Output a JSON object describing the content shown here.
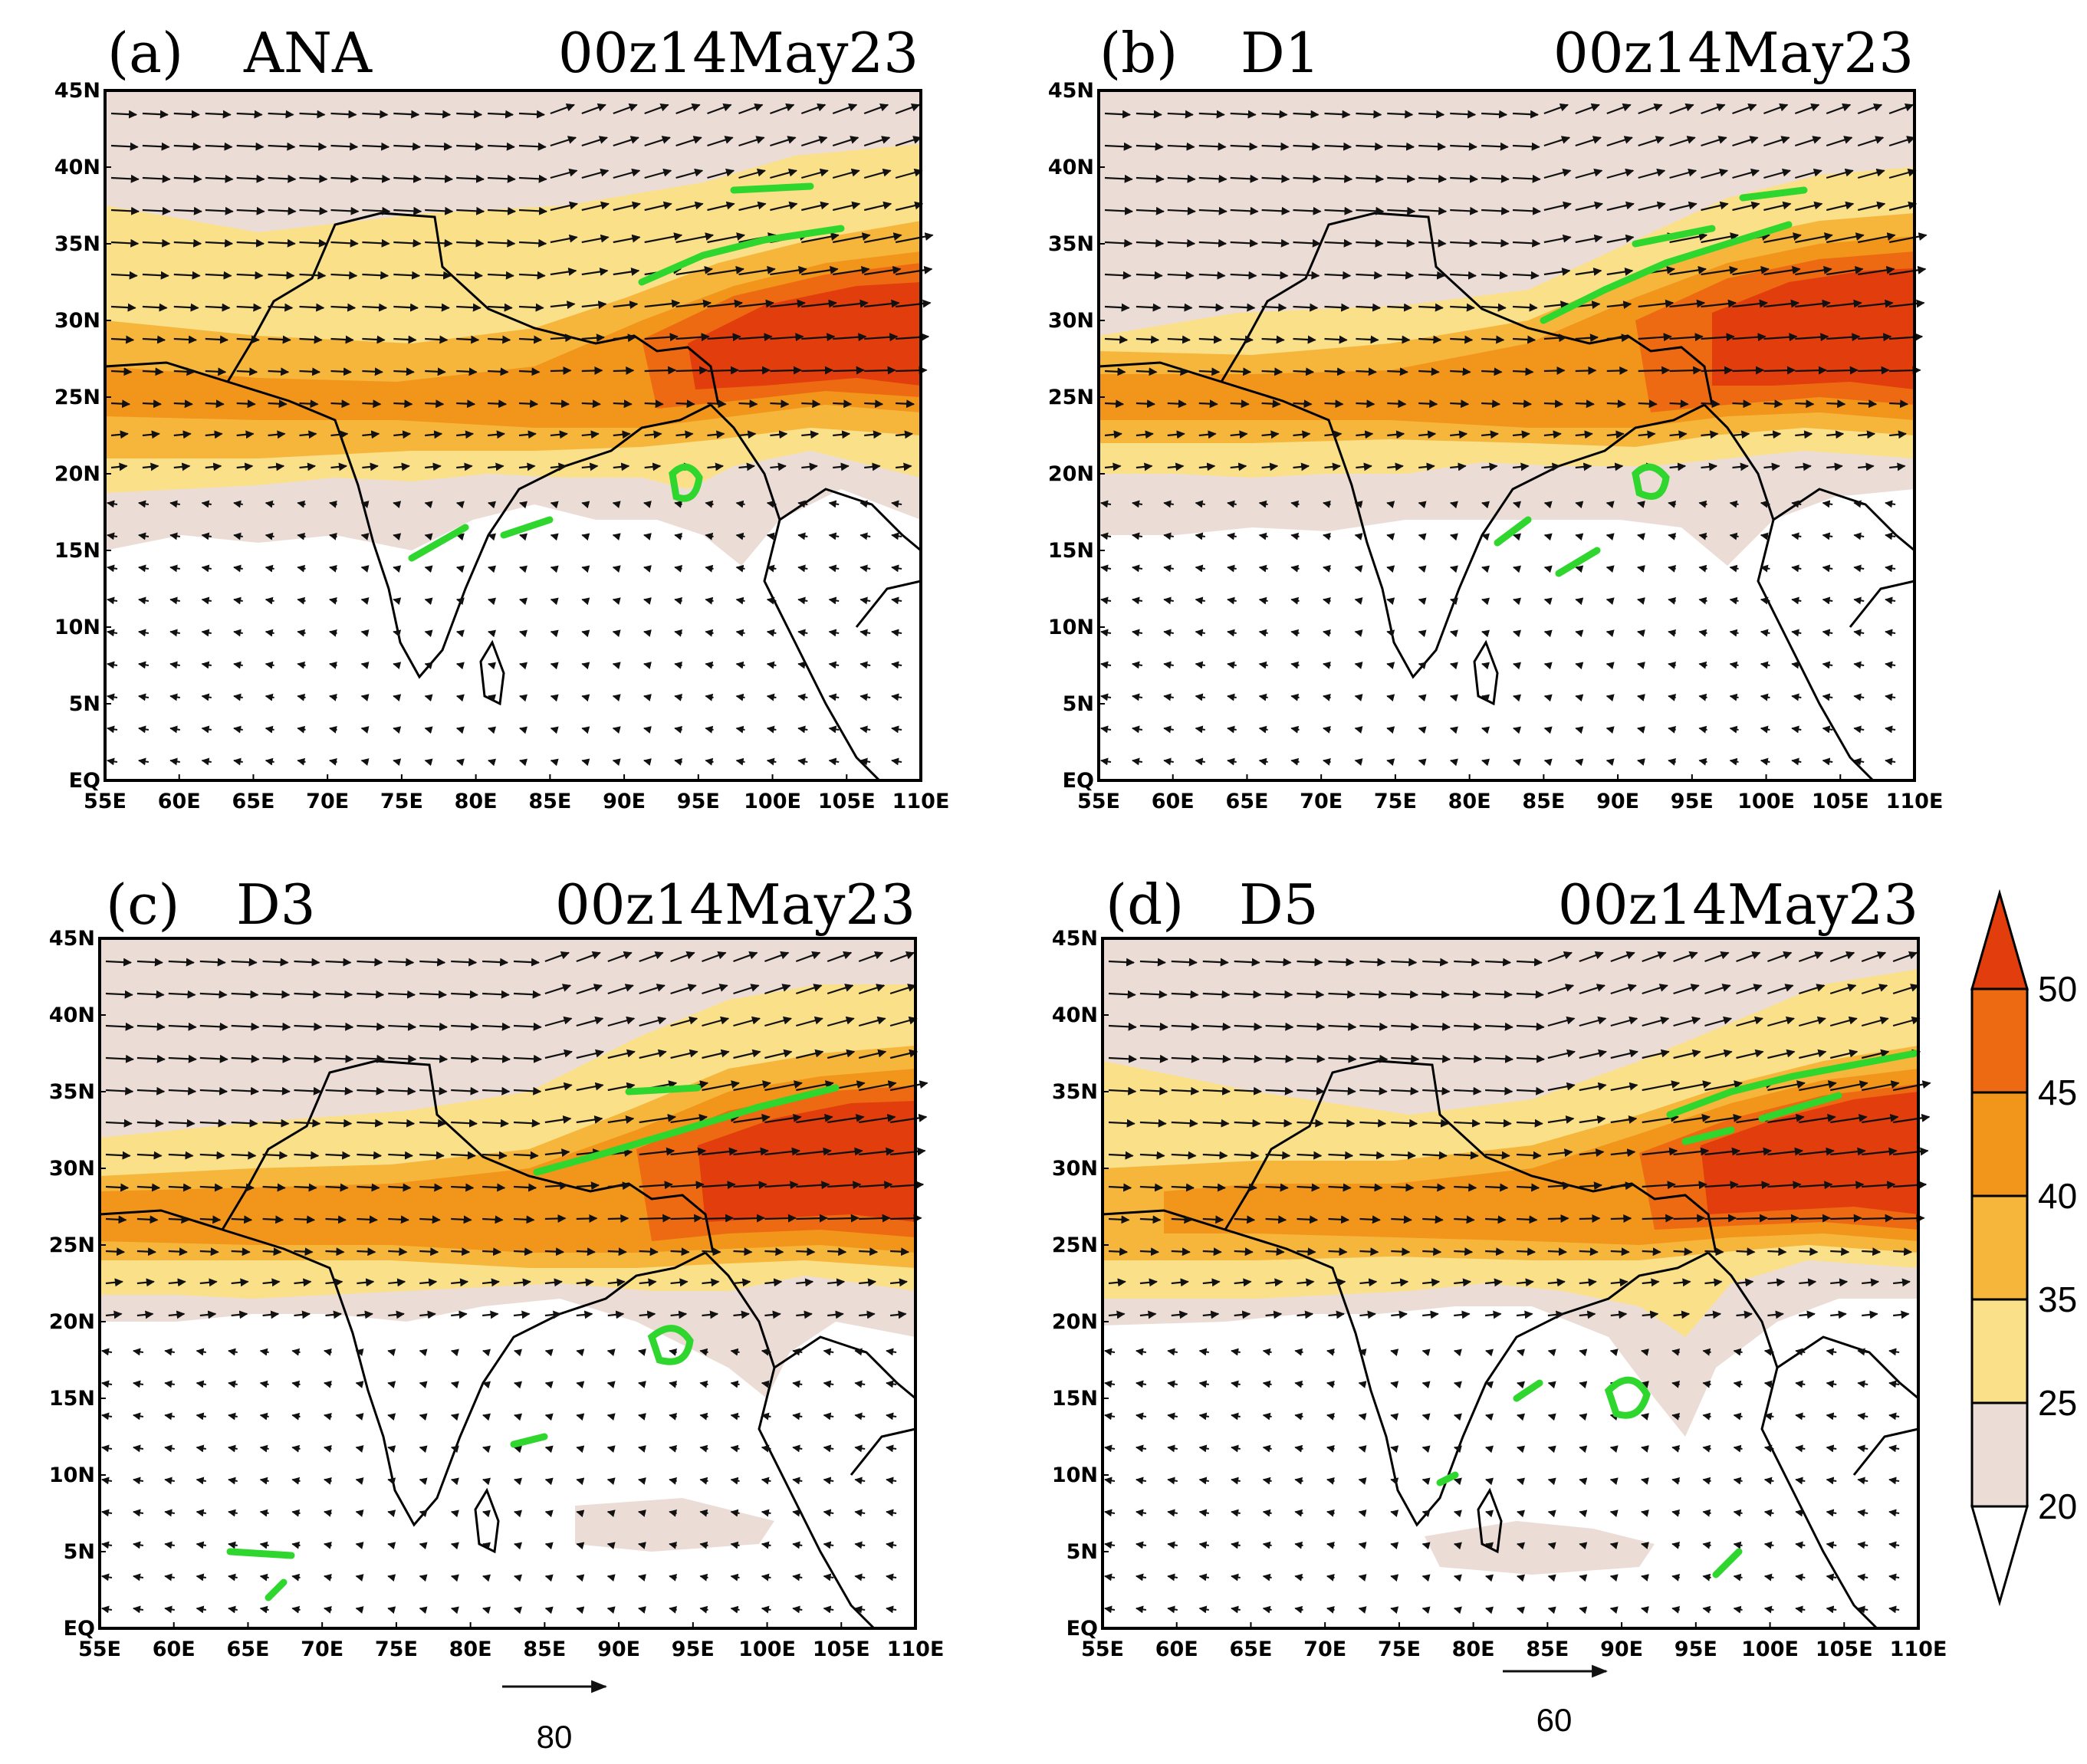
{
  "figure": {
    "panels": [
      {
        "label": "(a)",
        "run": "ANA",
        "time": "00z14May23"
      },
      {
        "label": "(b)",
        "run": "D1",
        "time": "00z14May23"
      },
      {
        "label": "(c)",
        "run": "D3",
        "time": "00z14May23"
      },
      {
        "label": "(d)",
        "run": "D5",
        "time": "00z14May23"
      }
    ],
    "lat_ticks": [
      "EQ",
      "5N",
      "10N",
      "15N",
      "20N",
      "25N",
      "30N",
      "35N",
      "40N",
      "45N"
    ],
    "lon_ticks": [
      "55E",
      "60E",
      "65E",
      "70E",
      "75E",
      "80E",
      "85E",
      "90E",
      "95E",
      "100E",
      "105E",
      "110E"
    ],
    "reference_vectors": [
      {
        "value": "80"
      },
      {
        "value": "60"
      }
    ],
    "colorbar": {
      "levels": [
        "20",
        "25",
        "35",
        "40",
        "45",
        "50"
      ],
      "colors": [
        "#ffffff",
        "#ecdcd6",
        "#fbe08a",
        "#f6b63c",
        "#f1951b",
        "#ee6a12",
        "#e23d0c"
      ]
    },
    "colors": {
      "contour": "#2ed62e",
      "vector": "#111111",
      "coast": "#000000"
    }
  }
}
